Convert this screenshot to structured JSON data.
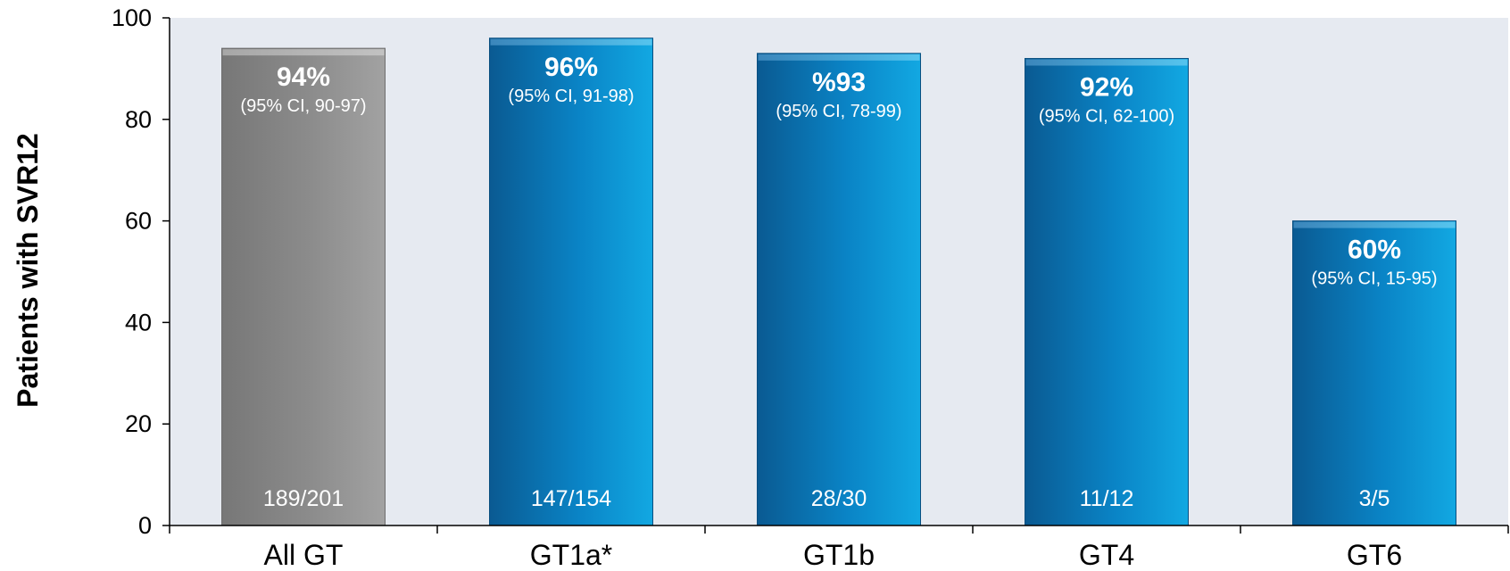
{
  "chart_data": {
    "type": "bar",
    "title": "",
    "xlabel": "",
    "ylabel": "Patients with SVR12",
    "ylim": [
      0,
      100
    ],
    "yticks": [
      0,
      20,
      40,
      60,
      80,
      100
    ],
    "grid": false,
    "categories": [
      "All GT",
      "GT1a*",
      "GT1b",
      "GT4",
      "GT6"
    ],
    "values": [
      94,
      96,
      93,
      92,
      60
    ],
    "percent_labels": [
      "94%",
      "96%",
      "%93",
      "92%",
      "60%"
    ],
    "ci_labels": [
      "(95% CI, 90-97)",
      "(95% CI, 91-98)",
      "(95% CI, 78-99)",
      "(95% CI, 62-100)",
      "(95% CI, 15-95)"
    ],
    "n_labels": [
      "189/201",
      "147/154",
      "28/30",
      "11/12",
      "3/5"
    ],
    "bar_colors": [
      "gray",
      "blue",
      "blue",
      "blue",
      "blue"
    ],
    "colors": {
      "plot_background": "#e6eaf1",
      "gray_dark": "#7d7d7d",
      "gray_light": "#9a9a9a",
      "blue_dark": "#0a5d95",
      "blue_light": "#0aa3df"
    }
  }
}
